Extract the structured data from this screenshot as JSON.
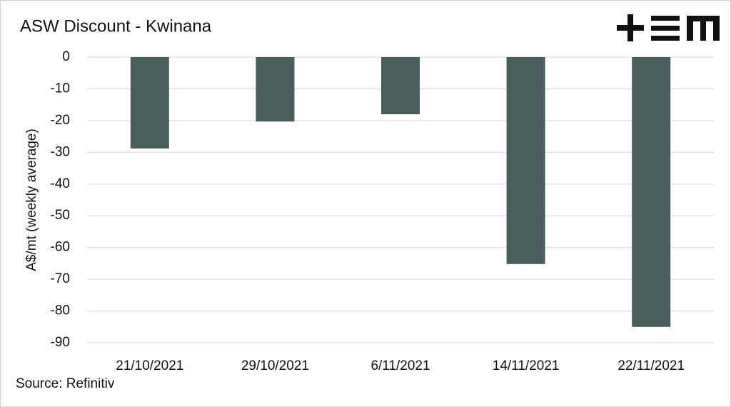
{
  "chart_data": {
    "type": "bar",
    "title": "ASW Discount - Kwinana",
    "y_label": "A$/mt (weekly average)",
    "source": "Source: Refinitiv",
    "categories": [
      "21/10/2021",
      "29/10/2021",
      "6/11/2021",
      "14/11/2021",
      "22/11/2021"
    ],
    "values": [
      -28.8,
      -20.3,
      -18,
      -65.2,
      -85
    ],
    "color": "#4a5e5e",
    "ylim": [
      -90,
      0
    ],
    "yticks": [
      0,
      -10,
      -20,
      -30,
      -40,
      -50,
      -60,
      -70,
      -80,
      -90
    ],
    "grid": true
  }
}
